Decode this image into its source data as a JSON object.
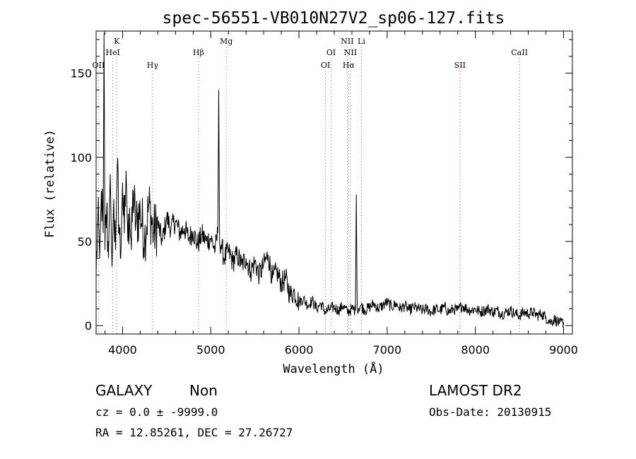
{
  "chart_data": {
    "type": "line",
    "title": "spec-56551-VB010N27V2_sp06-127.fits",
    "xlabel": "Wavelength (Å)",
    "ylabel": "Flux (relative)",
    "xlim": [
      3700,
      9100
    ],
    "ylim": [
      -5,
      175
    ],
    "xticks": [
      4000,
      5000,
      6000,
      7000,
      8000,
      9000
    ],
    "yticks": [
      0,
      50,
      100,
      150
    ],
    "grid": false,
    "series": [
      {
        "name": "flux",
        "x": [
          3700,
          3720,
          3740,
          3760,
          3780,
          3790,
          3800,
          3820,
          3840,
          3860,
          3880,
          3900,
          3920,
          3940,
          3960,
          3980,
          4000,
          4020,
          4040,
          4060,
          4080,
          4100,
          4120,
          4150,
          4200,
          4250,
          4300,
          4350,
          4400,
          4450,
          4500,
          4550,
          4600,
          4650,
          4700,
          4750,
          4800,
          4850,
          4900,
          4950,
          5000,
          5050,
          5080,
          5090,
          5100,
          5120,
          5150,
          5200,
          5250,
          5300,
          5350,
          5400,
          5450,
          5500,
          5550,
          5600,
          5650,
          5700,
          5750,
          5800,
          5850,
          5900,
          5950,
          6000,
          6050,
          6100,
          6150,
          6200,
          6250,
          6300,
          6350,
          6400,
          6450,
          6500,
          6550,
          6600,
          6640,
          6650,
          6660,
          6700,
          6750,
          6800,
          6850,
          6900,
          6950,
          7000,
          7050,
          7100,
          7150,
          7200,
          7250,
          7300,
          7350,
          7400,
          7450,
          7500,
          7550,
          7600,
          7650,
          7700,
          7750,
          7800,
          7850,
          7900,
          7950,
          8000,
          8050,
          8100,
          8150,
          8200,
          8250,
          8300,
          8350,
          8400,
          8450,
          8500,
          8550,
          8600,
          8650,
          8700,
          8750,
          8800,
          8850,
          8900,
          8950,
          9000
        ],
        "y": [
          30,
          65,
          40,
          80,
          55,
          174,
          45,
          70,
          40,
          90,
          35,
          75,
          45,
          95,
          60,
          40,
          85,
          55,
          92,
          50,
          70,
          45,
          80,
          60,
          68,
          52,
          72,
          55,
          60,
          50,
          64,
          58,
          62,
          55,
          58,
          52,
          56,
          48,
          54,
          50,
          52,
          45,
          55,
          140,
          50,
          48,
          40,
          44,
          38,
          42,
          36,
          40,
          32,
          38,
          30,
          36,
          42,
          28,
          32,
          25,
          28,
          18,
          20,
          14,
          16,
          12,
          15,
          10,
          13,
          8,
          10,
          11,
          9,
          12,
          8,
          10,
          9,
          78,
          10,
          12,
          9,
          11,
          13,
          10,
          12,
          14,
          11,
          13,
          10,
          12,
          9,
          11,
          10,
          9,
          10,
          8,
          10,
          9,
          11,
          8,
          10,
          9,
          12,
          10,
          9,
          10,
          8,
          9,
          10,
          8,
          9,
          7,
          8,
          9,
          7,
          6,
          8,
          7,
          8,
          6,
          7,
          5,
          2,
          4,
          1,
          2
        ]
      }
    ],
    "lines": [
      {
        "label": "OII",
        "wavelength": 3727,
        "color": "#999999",
        "row": 3
      },
      {
        "label": "K",
        "wavelength": 3934,
        "color": "#999999",
        "row": 1
      },
      {
        "label": "HeI",
        "wavelength": 3889,
        "color": "#999999",
        "row": 2
      },
      {
        "label": "Hγ",
        "wavelength": 4340,
        "color": "#999999",
        "row": 3
      },
      {
        "label": "Hβ",
        "wavelength": 4861,
        "color": "#999999",
        "row": 2
      },
      {
        "label": "Mg",
        "wavelength": 5175,
        "color": "#999999",
        "row": 1
      },
      {
        "label": "OI",
        "wavelength": 6364,
        "color": "#999999",
        "row": 2
      },
      {
        "label": "OI",
        "wavelength": 6300,
        "color": "#999999",
        "row": 3
      },
      {
        "label": "NII",
        "wavelength": 6548,
        "color": "#999999",
        "row": 1
      },
      {
        "label": "NII",
        "wavelength": 6584,
        "color": "#999999",
        "row": 2
      },
      {
        "label": "Hα",
        "wavelength": 6563,
        "color": "#999999",
        "row": 3
      },
      {
        "label": "Li",
        "wavelength": 6708,
        "color": "#dd6666",
        "row": 1
      },
      {
        "label": "SII",
        "wavelength": 7825,
        "color": "#dd6666",
        "row": 3
      },
      {
        "label": "CaII",
        "wavelength": 8500,
        "color": "#dd6666",
        "row": 2
      }
    ]
  },
  "info": {
    "class": "GALAXY",
    "subclass": "Non",
    "survey": "LAMOST DR2",
    "cz": "cz = 0.0 ± -9999.0",
    "obs_date": "Obs-Date: 20130915",
    "radec": "RA =  12.85261, DEC =  27.26727"
  }
}
